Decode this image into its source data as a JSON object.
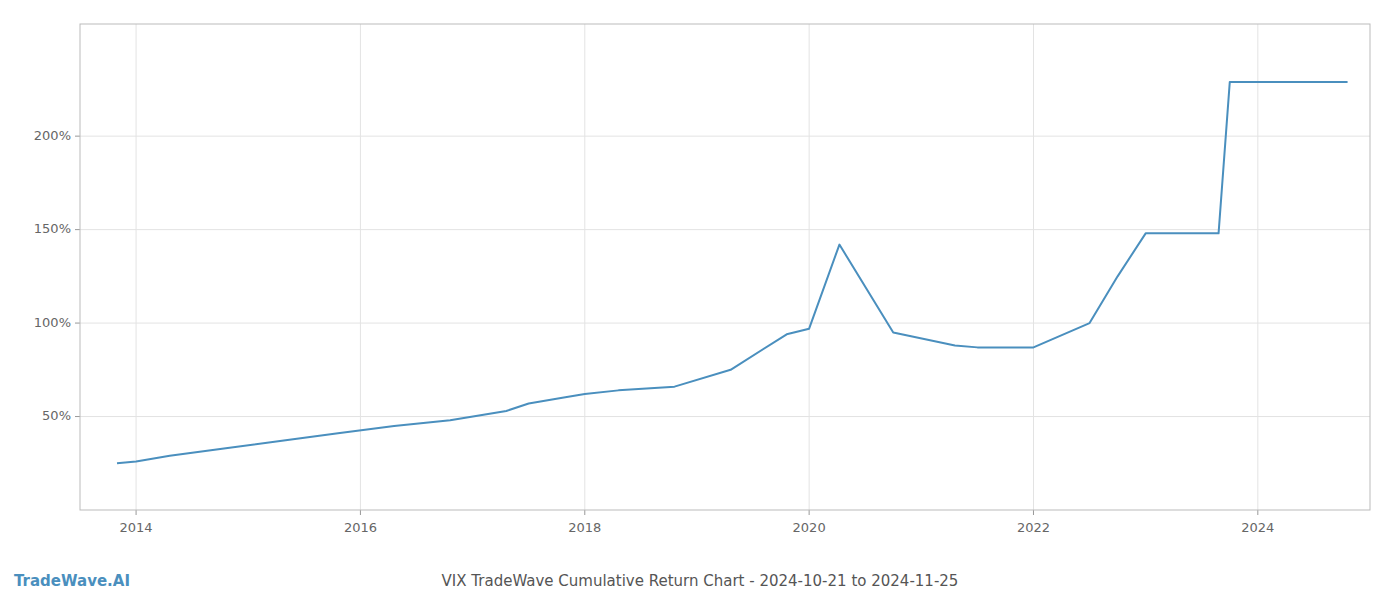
{
  "chart_data": {
    "type": "line",
    "title": "VIX TradeWave Cumulative Return Chart - 2024-10-21 to 2024-11-25",
    "annotations": [
      "TradeWave.AI"
    ],
    "color": "#4a8fbe",
    "x": [
      2013.83,
      2014.0,
      2014.3,
      2014.8,
      2015.3,
      2015.8,
      2016.3,
      2016.8,
      2017.3,
      2017.5,
      2017.8,
      2018.0,
      2018.3,
      2018.8,
      2019.3,
      2019.8,
      2020.0,
      2020.27,
      2020.75,
      2021.3,
      2021.5,
      2022.0,
      2022.5,
      2022.75,
      2023.0,
      2023.65,
      2023.75,
      2024.0,
      2024.8
    ],
    "values": [
      25,
      26,
      29,
      33,
      37,
      41,
      45,
      48,
      53,
      57,
      60,
      62,
      64,
      66,
      75,
      94,
      97,
      142,
      95,
      88,
      87,
      87,
      100,
      125,
      148,
      148,
      229,
      229,
      229
    ],
    "xlim": [
      2013.5,
      2025.0
    ],
    "ylim": [
      0,
      260
    ],
    "xticks": [
      2014,
      2016,
      2018,
      2020,
      2022,
      2024
    ],
    "yticks": [
      {
        "value": 50,
        "label": "50%"
      },
      {
        "value": 100,
        "label": "100%"
      },
      {
        "value": 150,
        "label": "150%"
      },
      {
        "value": 200,
        "label": "200%"
      }
    ],
    "grid": true
  }
}
